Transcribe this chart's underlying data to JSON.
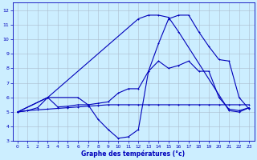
{
  "title": "Graphe des températures (°c)",
  "background_color": "#cceeff",
  "grid_color": "#aabbcc",
  "line_color": "#0000bb",
  "xlim": [
    -0.5,
    23.5
  ],
  "ylim": [
    3,
    12.5
  ],
  "xticks": [
    0,
    1,
    2,
    3,
    4,
    5,
    6,
    7,
    8,
    9,
    10,
    11,
    12,
    13,
    14,
    15,
    16,
    17,
    18,
    19,
    20,
    21,
    22,
    23
  ],
  "yticks": [
    3,
    4,
    5,
    6,
    7,
    8,
    9,
    10,
    11,
    12
  ],
  "line1_x": [
    0,
    1,
    2,
    3,
    4,
    5,
    6,
    7,
    8,
    9,
    10,
    11,
    12,
    13,
    14,
    15,
    16,
    17,
    18,
    19,
    20,
    21,
    22,
    23
  ],
  "line1_y": [
    5.0,
    5.1,
    5.15,
    5.2,
    5.25,
    5.3,
    5.35,
    5.4,
    5.45,
    5.5,
    5.5,
    5.5,
    5.5,
    5.5,
    5.5,
    5.5,
    5.5,
    5.5,
    5.5,
    5.5,
    5.5,
    5.5,
    5.5,
    5.5
  ],
  "line2_x": [
    0,
    1,
    2,
    3,
    4,
    5,
    6,
    7,
    8,
    9,
    10,
    11,
    12,
    13,
    14,
    15,
    16,
    17,
    18,
    19,
    20,
    21,
    22,
    23
  ],
  "line2_y": [
    5.0,
    5.1,
    5.3,
    6.0,
    5.35,
    5.4,
    5.5,
    5.5,
    5.6,
    5.7,
    6.3,
    6.6,
    6.6,
    7.8,
    8.5,
    8.0,
    8.2,
    8.5,
    7.8,
    7.8,
    6.0,
    5.2,
    5.1,
    5.3
  ],
  "line3_x": [
    0,
    3,
    6,
    7,
    8,
    9,
    10,
    11,
    12,
    13,
    14,
    15,
    16,
    17,
    18,
    19,
    20,
    21,
    22,
    23
  ],
  "line3_y": [
    5.0,
    6.0,
    6.0,
    5.5,
    4.5,
    3.8,
    3.2,
    3.3,
    3.8,
    7.8,
    9.7,
    11.4,
    11.65,
    11.65,
    10.5,
    9.5,
    8.6,
    8.5,
    6.0,
    5.2
  ],
  "line4_x": [
    0,
    3,
    12,
    13,
    14,
    15,
    16,
    21,
    22,
    23
  ],
  "line4_y": [
    5.0,
    6.0,
    11.4,
    11.65,
    11.65,
    11.5,
    10.5,
    5.1,
    5.0,
    5.3
  ]
}
